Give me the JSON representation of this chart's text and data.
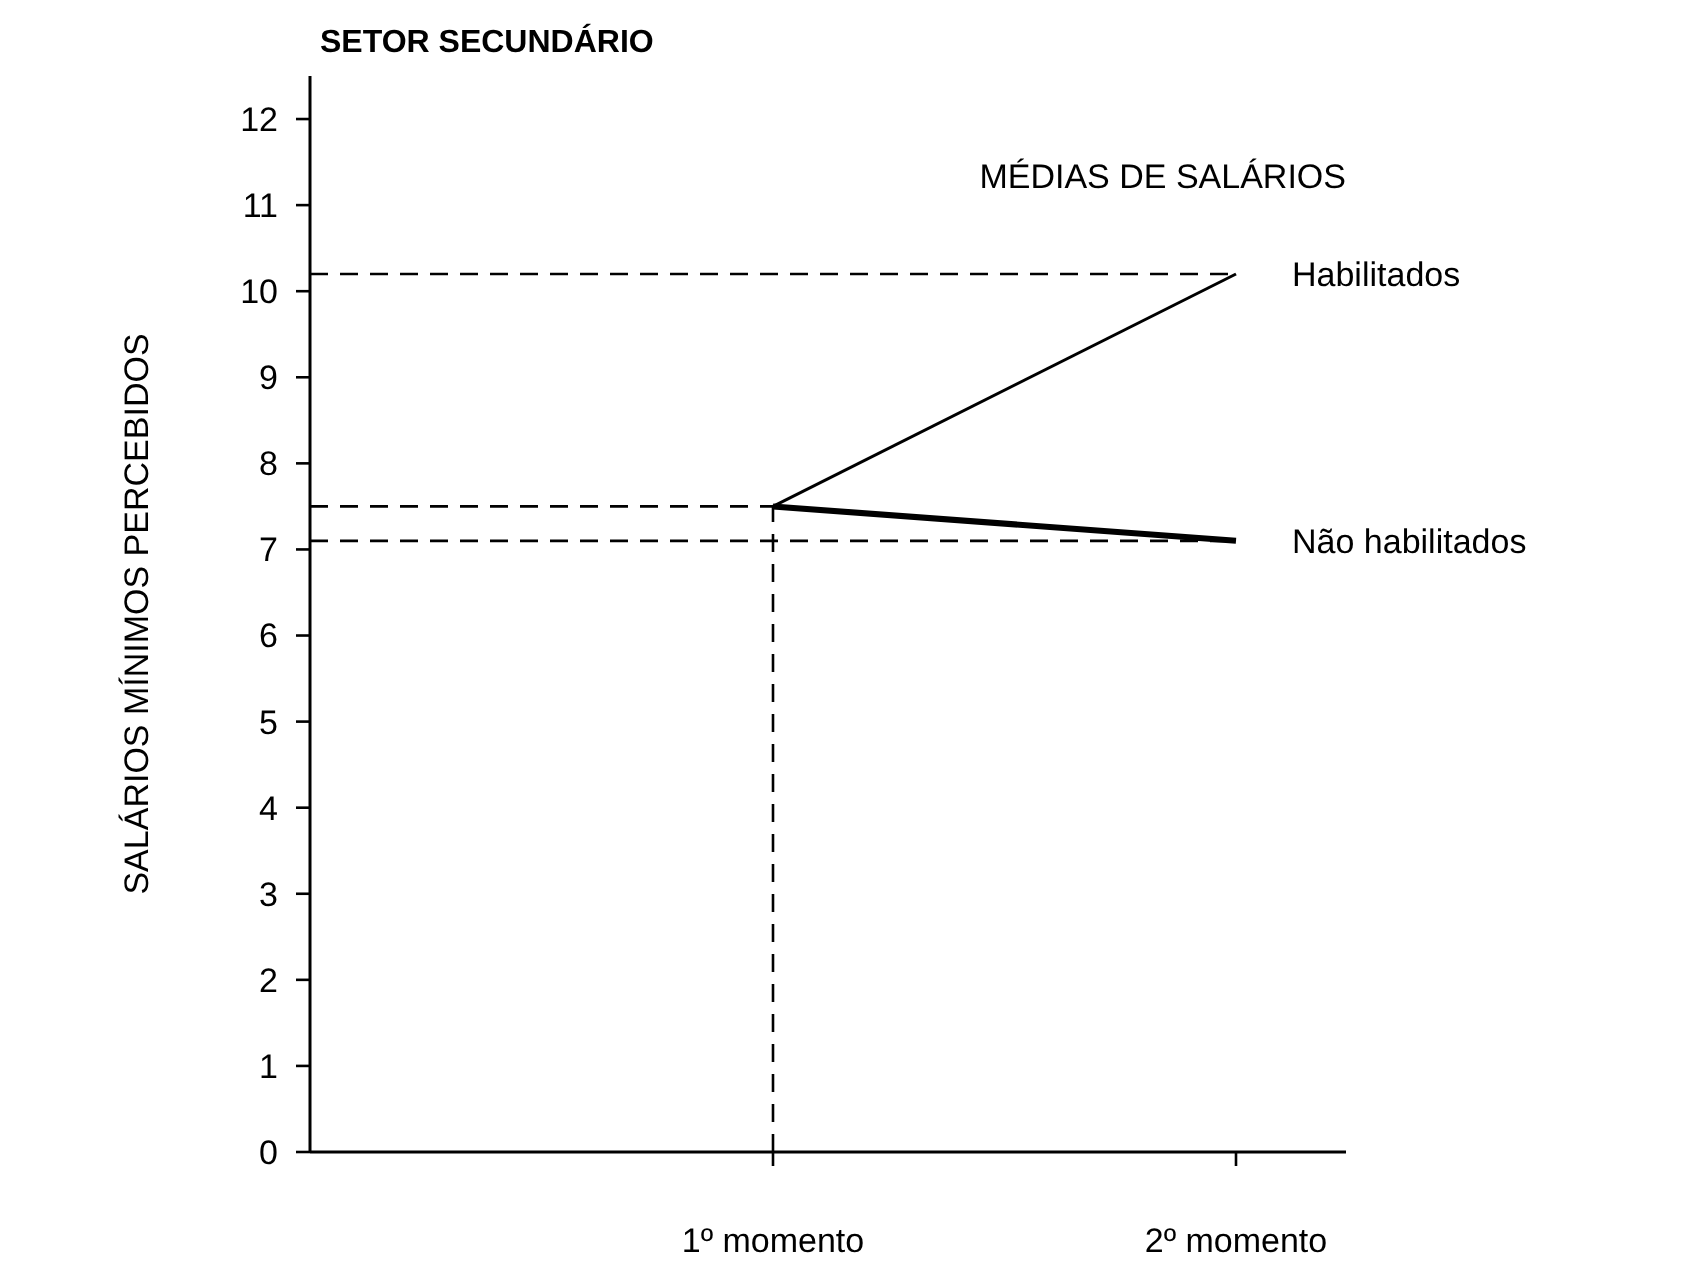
{
  "chart_data": {
    "type": "line",
    "title": "SETOR SECUNDÁRIO",
    "subtitle": "MÉDIAS DE SALÁRIOS",
    "ylabel": "SALÁRIOS MÍNIMOS PERCEBIDOS",
    "categories": [
      null,
      "1º momento",
      "2º momento"
    ],
    "series": [
      {
        "name": "Habilitados",
        "color": "#000000",
        "values": [
          null,
          7.5,
          10.2
        ]
      },
      {
        "name": "Não habilitados",
        "color": "#000000",
        "values": [
          null,
          7.5,
          7.1
        ]
      }
    ],
    "ylim": [
      0,
      12.5
    ],
    "yticks": [
      0,
      1,
      2,
      3,
      4,
      5,
      6,
      7,
      8,
      9,
      10,
      11,
      12
    ],
    "ref_lines": [
      {
        "axis": "y",
        "value": 10.2,
        "line_style": "dashed"
      },
      {
        "axis": "y",
        "value": 7.5,
        "line_style": "dashed"
      },
      {
        "axis": "y",
        "value": 7.1,
        "line_style": "dashed"
      },
      {
        "axis": "x",
        "value": "1º momento",
        "line_style": "dashed"
      }
    ],
    "grid": false,
    "marker": "none",
    "line_style": "solid"
  }
}
